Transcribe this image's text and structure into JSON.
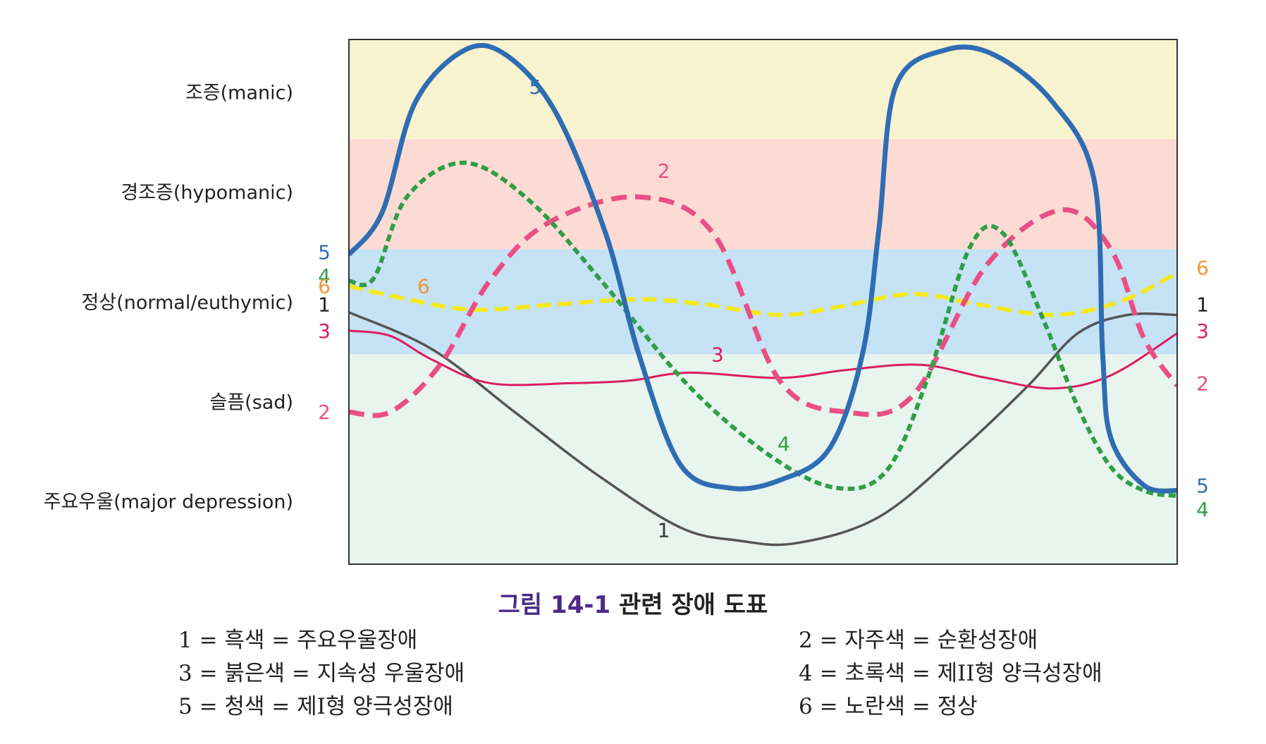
{
  "colors": {
    "band_manic": "#f7f3cf",
    "band_hypomanic": "#fbdbd3",
    "band_normal": "#c6e2f5",
    "band_lower": "#e8f4ee",
    "frame": "#333333",
    "black": "#555555",
    "red": "#dc1c62",
    "purple": "#e94f85",
    "green": "#2f9e47",
    "blue": "#2e6db3",
    "yellow": "#f4ea1c"
  },
  "chart_data": {
    "type": "line",
    "xlim": [
      0,
      100
    ],
    "ylim": [
      0,
      100
    ],
    "mood_levels": [
      {
        "label": "조증(manic)",
        "y": 90
      },
      {
        "label": "경조증(hypomanic)",
        "y": 71
      },
      {
        "label": "정상(normal/euthymic)",
        "y": 50
      },
      {
        "label": "슬픔(sad)",
        "y": 31
      },
      {
        "label": "주요우울(major depression)",
        "y": 12
      }
    ],
    "bands": [
      {
        "name": "manic",
        "from": 81,
        "to": 100
      },
      {
        "name": "hypomanic",
        "from": 60,
        "to": 81
      },
      {
        "name": "normal",
        "from": 40,
        "to": 60
      },
      {
        "name": "lower",
        "from": 0,
        "to": 40
      }
    ],
    "series": [
      {
        "id": "1",
        "label": "1",
        "color_key": "black",
        "style": "solid",
        "width": 3.5,
        "points": [
          [
            0,
            48
          ],
          [
            10,
            41
          ],
          [
            20,
            29
          ],
          [
            30,
            17
          ],
          [
            40,
            7
          ],
          [
            47,
            4.5
          ],
          [
            54,
            4
          ],
          [
            64,
            9
          ],
          [
            74,
            22
          ],
          [
            82,
            34
          ],
          [
            88,
            44
          ],
          [
            94,
            47.5
          ],
          [
            100,
            47.5
          ]
        ],
        "start_label_y": 49.5,
        "end_label_y": 49.5,
        "mid_label": {
          "x": 38,
          "y": 6.5
        }
      },
      {
        "id": "2",
        "label": "2",
        "color_key": "purple",
        "style": "dash",
        "width": 7,
        "points": [
          [
            0,
            29
          ],
          [
            5,
            29
          ],
          [
            11,
            38
          ],
          [
            17,
            54
          ],
          [
            24,
            65
          ],
          [
            35,
            70
          ],
          [
            44,
            63
          ],
          [
            52,
            35
          ],
          [
            60,
            29
          ],
          [
            68,
            32
          ],
          [
            77,
            57
          ],
          [
            86,
            67.5
          ],
          [
            92,
            60
          ],
          [
            96,
            43
          ],
          [
            100,
            34
          ]
        ],
        "start_label_y": 29,
        "end_label_y": 34.5,
        "mid_label": {
          "x": 38,
          "y": 75
        }
      },
      {
        "id": "3",
        "label": "3",
        "color_key": "red",
        "style": "solid",
        "width": 3,
        "points": [
          [
            0,
            44.5
          ],
          [
            5,
            43.5
          ],
          [
            10,
            39
          ],
          [
            17,
            34.5
          ],
          [
            27,
            34.5
          ],
          [
            34,
            35
          ],
          [
            41,
            36.5
          ],
          [
            52,
            35.5
          ],
          [
            60,
            37
          ],
          [
            69,
            38
          ],
          [
            77,
            35.5
          ],
          [
            85,
            33.5
          ],
          [
            92,
            36
          ],
          [
            100,
            44
          ]
        ],
        "start_label_y": 44.5,
        "end_label_y": 44.5,
        "mid_label": {
          "x": 44.5,
          "y": 40
        }
      },
      {
        "id": "4",
        "label": "4",
        "color_key": "green",
        "style": "dash",
        "width": 6,
        "points": [
          [
            0,
            54
          ],
          [
            3,
            54.5
          ],
          [
            7,
            70
          ],
          [
            14,
            76.5
          ],
          [
            22,
            69
          ],
          [
            31,
            53
          ],
          [
            41,
            34
          ],
          [
            51,
            20.5
          ],
          [
            59,
            14.5
          ],
          [
            65,
            18
          ],
          [
            70,
            36
          ],
          [
            75,
            60.5
          ],
          [
            79,
            63
          ],
          [
            84,
            46
          ],
          [
            88,
            30
          ],
          [
            92,
            18.5
          ],
          [
            96,
            14
          ],
          [
            100,
            13
          ]
        ],
        "start_label_y": 55,
        "end_label_y": 10.5,
        "mid_label": {
          "x": 52.5,
          "y": 23
        }
      },
      {
        "id": "5",
        "label": "5",
        "color_key": "blue",
        "style": "solid",
        "width": 7,
        "points": [
          [
            0,
            59
          ],
          [
            4,
            67
          ],
          [
            8,
            88
          ],
          [
            14,
            98
          ],
          [
            19,
            97
          ],
          [
            25,
            86
          ],
          [
            31,
            63
          ],
          [
            35,
            40
          ],
          [
            40,
            19
          ],
          [
            46,
            14.5
          ],
          [
            52,
            16
          ],
          [
            58,
            22
          ],
          [
            62,
            40
          ],
          [
            64,
            64
          ],
          [
            66,
            91
          ],
          [
            72,
            98
          ],
          [
            78,
            97
          ],
          [
            85,
            88
          ],
          [
            90,
            73
          ],
          [
            91,
            40
          ],
          [
            92,
            24
          ],
          [
            96,
            15
          ],
          [
            100,
            14
          ]
        ],
        "start_label_y": 59.5,
        "end_label_y": 15,
        "mid_label": {
          "x": 22.5,
          "y": 91
        }
      },
      {
        "id": "6",
        "label": "6",
        "color_key": "yellow",
        "style": "dash",
        "width": 6,
        "points": [
          [
            0,
            53
          ],
          [
            7,
            50.5
          ],
          [
            15,
            48.5
          ],
          [
            25,
            49.5
          ],
          [
            35,
            50.5
          ],
          [
            43,
            49.5
          ],
          [
            52,
            47.5
          ],
          [
            59,
            49
          ],
          [
            68,
            51.5
          ],
          [
            76,
            49.5
          ],
          [
            85,
            47.5
          ],
          [
            93,
            50
          ],
          [
            100,
            55.5
          ]
        ],
        "start_label_y": 53,
        "end_label_y": 56.5,
        "mid_label": {
          "x": 9,
          "y": 53
        }
      }
    ],
    "caption_prefix": "그림 14-1",
    "caption_text": "관련 장애 도표",
    "legend": [
      "1 = 흑색 = 주요우울장애",
      "2 = 자주색 = 순환성장애",
      "3 = 붉은색 = 지속성 우울장애",
      "4 = 초록색 = 제II형 양극성장애",
      "5 = 청색 = 제I형 양극성장애",
      "6 = 노란색 = 정상"
    ]
  }
}
